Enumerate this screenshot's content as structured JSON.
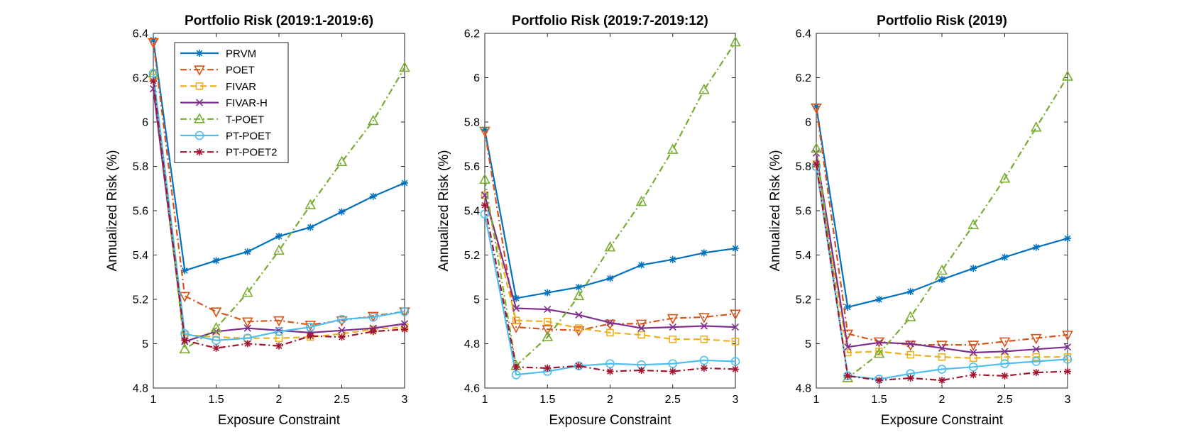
{
  "chart_data": [
    {
      "type": "line",
      "title": "Portfolio Risk (2019:1-2019:6)",
      "xlabel": "Exposure Constraint",
      "ylabel": "Annualized Risk (%)",
      "xlim": [
        1,
        3
      ],
      "ylim": [
        4.8,
        6.4
      ],
      "xticks": [
        1,
        1.5,
        2,
        2.5,
        3
      ],
      "xtick_labels": [
        "1",
        "1.5",
        "2",
        "2.5",
        "3"
      ],
      "yticks": [
        4.8,
        5,
        5.2,
        5.4,
        5.6,
        5.8,
        6,
        6.2,
        6.4
      ],
      "ytick_labels": [
        "4.8",
        "5",
        "5.2",
        "5.4",
        "5.6",
        "5.8",
        "6",
        "6.2",
        "6.4"
      ],
      "legend": {
        "show": true,
        "location": "top-left"
      },
      "x": [
        1,
        1.25,
        1.5,
        1.75,
        2,
        2.25,
        2.5,
        2.75,
        3
      ],
      "series": [
        {
          "name": "PRVM",
          "values": [
            6.37,
            5.33,
            5.375,
            5.415,
            5.485,
            5.525,
            5.595,
            5.665,
            5.725
          ]
        },
        {
          "name": "POET",
          "values": [
            6.36,
            5.215,
            5.145,
            5.1,
            5.105,
            5.085,
            5.105,
            5.125,
            5.145
          ]
        },
        {
          "name": "FIVAR",
          "values": [
            6.2,
            5.04,
            5.03,
            5.025,
            5.025,
            5.03,
            5.045,
            5.065,
            5.075
          ]
        },
        {
          "name": "FIVAR-H",
          "values": [
            6.15,
            5.01,
            5.055,
            5.07,
            5.06,
            5.05,
            5.06,
            5.07,
            5.09
          ]
        },
        {
          "name": "T-POET",
          "values": [
            6.22,
            4.975,
            5.07,
            5.23,
            5.42,
            5.625,
            5.82,
            6.005,
            6.245
          ]
        },
        {
          "name": "PT-POET",
          "values": [
            6.22,
            5.045,
            5.015,
            5.025,
            5.055,
            5.075,
            5.11,
            5.12,
            5.145
          ]
        },
        {
          "name": "PT-POET2",
          "values": [
            6.185,
            5.015,
            4.98,
            5.0,
            4.99,
            5.035,
            5.03,
            5.055,
            5.065
          ]
        }
      ]
    },
    {
      "type": "line",
      "title": "Portfolio Risk (2019:7-2019:12)",
      "xlabel": "Exposure Constraint",
      "ylabel": "Annualized Risk (%)",
      "xlim": [
        1,
        3
      ],
      "ylim": [
        4.6,
        6.2
      ],
      "xticks": [
        1,
        1.5,
        2,
        2.5,
        3
      ],
      "xtick_labels": [
        "1",
        "1.5",
        "2",
        "2.5",
        "3"
      ],
      "yticks": [
        4.6,
        4.8,
        5,
        5.2,
        5.4,
        5.6,
        5.8,
        6,
        6.2
      ],
      "ytick_labels": [
        "4.6",
        "4.8",
        "5",
        "5.2",
        "5.4",
        "5.6",
        "5.8",
        "6",
        "6.2"
      ],
      "legend": {
        "show": false
      },
      "x": [
        1,
        1.25,
        1.5,
        1.75,
        2,
        2.25,
        2.5,
        2.75,
        3
      ],
      "series": [
        {
          "name": "PRVM",
          "values": [
            5.765,
            5.005,
            5.03,
            5.055,
            5.095,
            5.155,
            5.18,
            5.21,
            5.23
          ]
        },
        {
          "name": "POET",
          "values": [
            5.76,
            4.875,
            4.865,
            4.86,
            4.89,
            4.89,
            4.915,
            4.92,
            4.935
          ]
        },
        {
          "name": "FIVAR",
          "values": [
            5.47,
            4.905,
            4.9,
            4.87,
            4.85,
            4.84,
            4.82,
            4.82,
            4.81
          ]
        },
        {
          "name": "FIVAR-H",
          "values": [
            5.47,
            4.96,
            4.955,
            4.93,
            4.895,
            4.87,
            4.875,
            4.88,
            4.875
          ]
        },
        {
          "name": "T-POET",
          "values": [
            5.54,
            4.7,
            4.83,
            5.015,
            5.235,
            5.44,
            5.675,
            5.945,
            6.16
          ]
        },
        {
          "name": "PT-POET",
          "values": [
            5.385,
            4.66,
            4.675,
            4.7,
            4.71,
            4.705,
            4.71,
            4.725,
            4.72
          ]
        },
        {
          "name": "PT-POET2",
          "values": [
            5.425,
            4.695,
            4.69,
            4.7,
            4.675,
            4.68,
            4.675,
            4.69,
            4.685
          ]
        }
      ]
    },
    {
      "type": "line",
      "title": "Portfolio Risk (2019)",
      "xlabel": "Exposure Constraint",
      "ylabel": "Annualized Risk (%)",
      "xlim": [
        1,
        3
      ],
      "ylim": [
        4.8,
        6.4
      ],
      "xticks": [
        1,
        1.5,
        2,
        2.5,
        3
      ],
      "xtick_labels": [
        "1",
        "1.5",
        "2",
        "2.5",
        "3"
      ],
      "yticks": [
        4.8,
        5,
        5.2,
        5.4,
        5.6,
        5.8,
        6,
        6.2,
        6.4
      ],
      "ytick_labels": [
        "4.8",
        "5",
        "5.2",
        "5.4",
        "5.6",
        "5.8",
        "6",
        "6.2",
        "6.4"
      ],
      "legend": {
        "show": false
      },
      "x": [
        1,
        1.25,
        1.5,
        1.75,
        2,
        2.25,
        2.5,
        2.75,
        3
      ],
      "series": [
        {
          "name": "PRVM",
          "values": [
            6.07,
            5.165,
            5.2,
            5.235,
            5.29,
            5.34,
            5.39,
            5.435,
            5.475
          ]
        },
        {
          "name": "POET",
          "values": [
            6.065,
            5.045,
            5.01,
            4.995,
            4.995,
            4.995,
            5.01,
            5.025,
            5.04
          ]
        },
        {
          "name": "FIVAR",
          "values": [
            5.81,
            4.96,
            4.965,
            4.95,
            4.94,
            4.935,
            4.94,
            4.94,
            4.94
          ]
        },
        {
          "name": "FIVAR-H",
          "values": [
            5.86,
            4.985,
            5.005,
            5.0,
            4.98,
            4.96,
            4.965,
            4.975,
            4.985
          ]
        },
        {
          "name": "T-POET",
          "values": [
            5.88,
            4.845,
            4.955,
            5.12,
            5.33,
            5.535,
            5.745,
            5.975,
            6.205
          ]
        },
        {
          "name": "PT-POET",
          "values": [
            5.8,
            4.855,
            4.84,
            4.865,
            4.885,
            4.895,
            4.91,
            4.92,
            4.93
          ]
        },
        {
          "name": "PT-POET2",
          "values": [
            5.81,
            4.855,
            4.835,
            4.845,
            4.835,
            4.86,
            4.855,
            4.87,
            4.875
          ]
        }
      ]
    }
  ],
  "series_styles": {
    "PRVM": {
      "color": "#0072BD",
      "dash": "solid",
      "marker": "asterisk"
    },
    "POET": {
      "color": "#D95319",
      "dash": "dashdot",
      "marker": "triangle-down"
    },
    "FIVAR": {
      "color": "#EDB120",
      "dash": "dashed",
      "marker": "square"
    },
    "FIVAR-H": {
      "color": "#7E2F8E",
      "dash": "solid",
      "marker": "x"
    },
    "T-POET": {
      "color": "#77AC30",
      "dash": "dashdot",
      "marker": "triangle-up"
    },
    "PT-POET": {
      "color": "#4DBEEE",
      "dash": "solid",
      "marker": "circle"
    },
    "PT-POET2": {
      "color": "#A2142F",
      "dash": "dashdot",
      "marker": "asterisk"
    }
  }
}
